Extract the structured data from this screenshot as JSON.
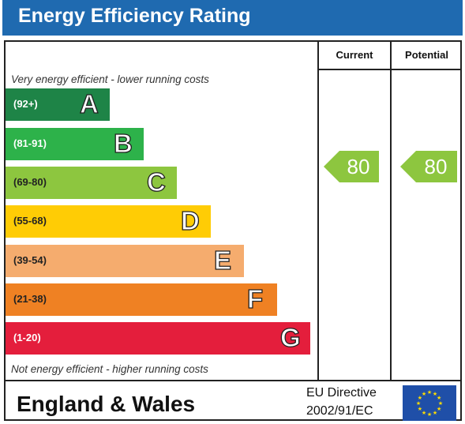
{
  "title": "Energy Efficiency Rating",
  "columns": {
    "current": "Current",
    "potential": "Potential"
  },
  "captions": {
    "top": "Very energy efficient - lower running costs",
    "bottom": "Not energy efficient - higher running costs"
  },
  "footer": {
    "region": "England & Wales",
    "directive_line1": "EU Directive",
    "directive_line2": "2002/91/EC",
    "flag_icon": "eu-flag-icon"
  },
  "colors": {
    "title_bar": "#1f6ab0",
    "A": "#1e8447",
    "B": "#2db24a",
    "C": "#8dc63f",
    "D": "#ffcc05",
    "E": "#f5ac6e",
    "F": "#ef8123",
    "G": "#e41e3c",
    "arrow": "#8dc63f"
  },
  "chart_data": {
    "type": "bar",
    "title": "Energy Efficiency Rating",
    "bands": [
      {
        "letter": "A",
        "range": "(92+)"
      },
      {
        "letter": "B",
        "range": "(81-91)"
      },
      {
        "letter": "C",
        "range": "(69-80)"
      },
      {
        "letter": "D",
        "range": "(55-68)"
      },
      {
        "letter": "E",
        "range": "(39-54)"
      },
      {
        "letter": "F",
        "range": "(21-38)"
      },
      {
        "letter": "G",
        "range": "(1-20)"
      }
    ],
    "current": {
      "value": 80,
      "band": "C"
    },
    "potential": {
      "value": 80,
      "band": "C"
    }
  }
}
